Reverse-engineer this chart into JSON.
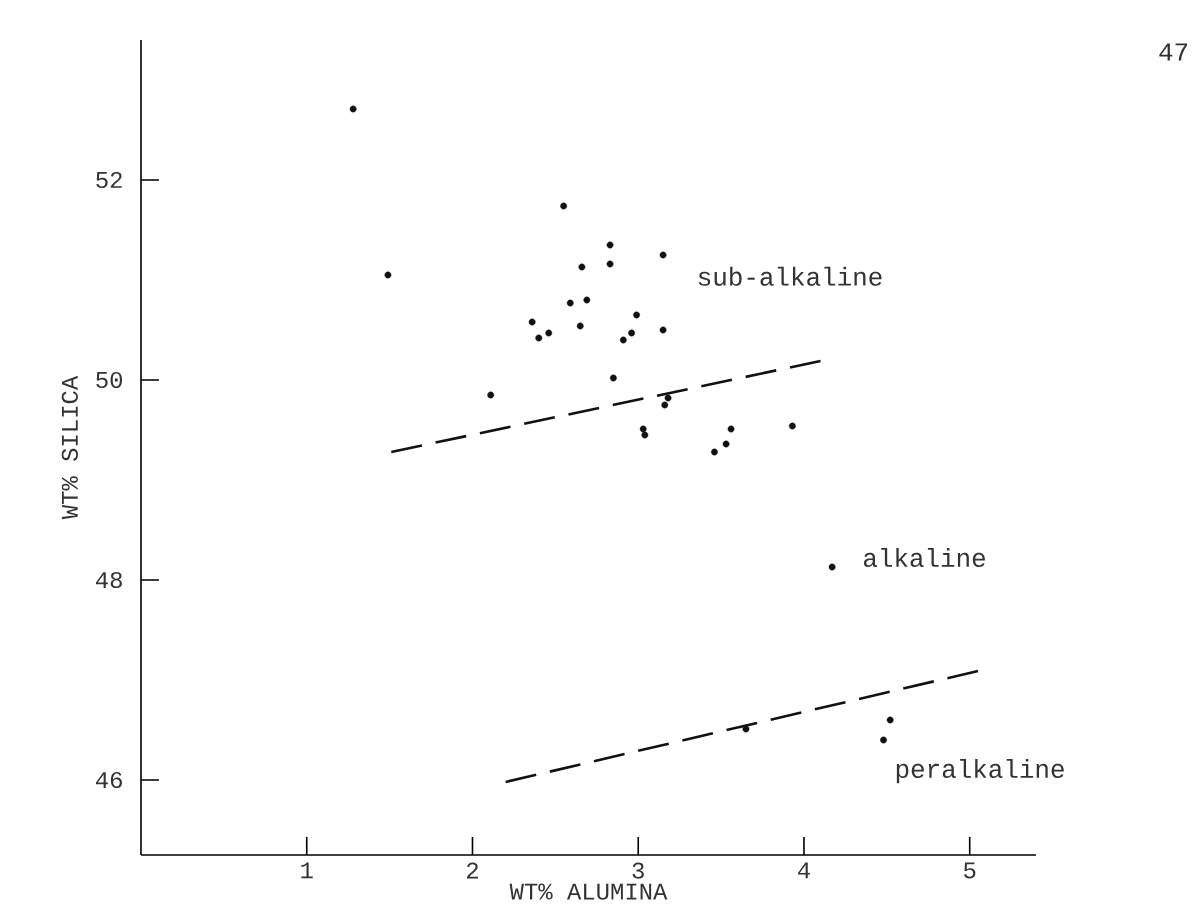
{
  "chart_data": {
    "type": "scatter",
    "xlabel": "WT% ALUMINA",
    "ylabel": "WT% SILICA",
    "xlim": [
      0,
      5.4
    ],
    "ylim": [
      45.25,
      53.4
    ],
    "xticks": [
      1,
      2,
      3,
      4,
      5
    ],
    "yticks": [
      46,
      48,
      50,
      52
    ],
    "series": [
      {
        "marker": "circle",
        "color": "#111111",
        "x": [
          1.28,
          1.49,
          2.55,
          2.83,
          3.15,
          2.66,
          2.83,
          2.59,
          2.69,
          2.36,
          2.4,
          2.46,
          2.65,
          2.99,
          2.96,
          2.91,
          3.15,
          2.85,
          2.11,
          3.18,
          3.16,
          3.03,
          3.04,
          3.56,
          3.53,
          3.46,
          3.93,
          4.17,
          3.65,
          4.52,
          4.48
        ],
        "values": [
          52.71,
          51.05,
          51.74,
          51.35,
          51.25,
          51.13,
          51.16,
          50.77,
          50.8,
          50.58,
          50.42,
          50.47,
          50.54,
          50.65,
          50.47,
          50.4,
          50.5,
          50.02,
          49.85,
          49.82,
          49.75,
          49.51,
          49.45,
          49.51,
          49.36,
          49.28,
          49.54,
          48.13,
          46.51,
          46.6,
          46.4
        ]
      },
      {
        "type": "line",
        "marker": "none",
        "line_style": "dashed",
        "color": "#111111",
        "x": [
          1.51,
          4.1
        ],
        "values": [
          49.28,
          50.19
        ]
      },
      {
        "type": "line",
        "marker": "none",
        "line_style": "dashed",
        "color": "#111111",
        "x": [
          2.2,
          5.05
        ],
        "values": [
          45.98,
          47.09
        ]
      }
    ],
    "annotations": [
      "sub-alkaline",
      "alkaline",
      "peralkaline",
      "47"
    ]
  }
}
